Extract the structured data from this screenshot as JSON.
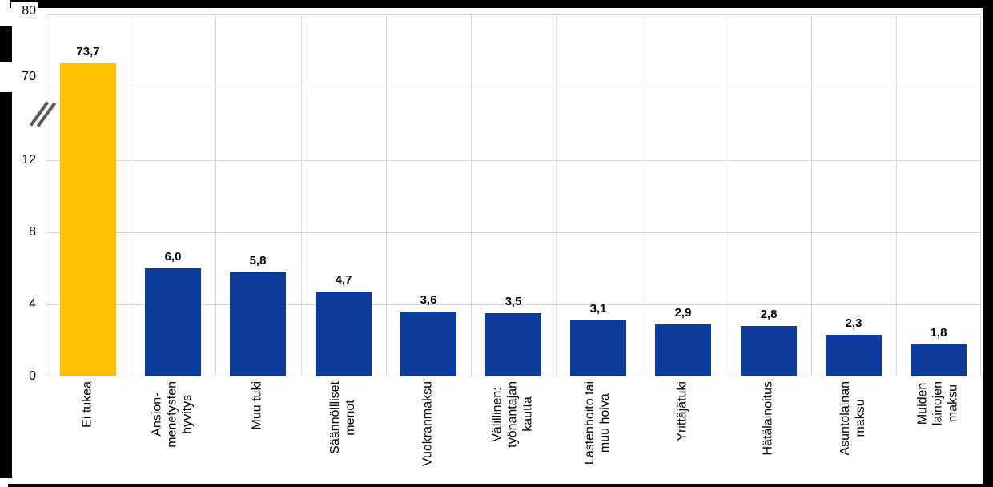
{
  "chart_data": {
    "type": "bar",
    "title": "",
    "xlabel": "",
    "ylabel": "",
    "grid": true,
    "legend": null,
    "categories": [
      {
        "lines": [
          "Ei tukea"
        ]
      },
      {
        "lines": [
          "Ansion-",
          "menetysten",
          "hyvitys"
        ]
      },
      {
        "lines": [
          "Muu tuki"
        ]
      },
      {
        "lines": [
          "Säännöllliset",
          "menot"
        ]
      },
      {
        "lines": [
          "Vuokranmaksu"
        ]
      },
      {
        "lines": [
          "Välillinen:",
          "työnantajan",
          "kautta"
        ]
      },
      {
        "lines": [
          "Lastenhoito tai",
          "muu hoiva"
        ]
      },
      {
        "lines": [
          "Yrittäjätuki"
        ]
      },
      {
        "lines": [
          "Hätälainoitus"
        ]
      },
      {
        "lines": [
          "Asuntolainan",
          "maksu"
        ]
      },
      {
        "lines": [
          "Muiden",
          "lainojen",
          "maksu"
        ]
      }
    ],
    "values": [
      73.7,
      6.0,
      5.8,
      4.7,
      3.6,
      3.5,
      3.1,
      2.9,
      2.8,
      2.3,
      1.8
    ],
    "value_labels": [
      "73,7",
      "6,0",
      "5,8",
      "4,7",
      "3,6",
      "3,5",
      "3,1",
      "2,9",
      "2,8",
      "2,3",
      "1,8"
    ],
    "highlight_index": 0,
    "colors": {
      "highlight": "#FFC000",
      "default": "#0C3B9C",
      "gridline": "#D9D9D9",
      "axis_break_mark": "#595959",
      "frame": "#000000"
    },
    "y_axis": {
      "has_break": true,
      "break_between": [
        12,
        70
      ],
      "lower_ticks": [
        {
          "v": 0,
          "label": "0"
        },
        {
          "v": 4,
          "label": "4"
        },
        {
          "v": 8,
          "label": "8"
        },
        {
          "v": 12,
          "label": "12"
        }
      ],
      "upper_ticks": [
        {
          "label": "70"
        },
        {
          "label": "80"
        }
      ]
    }
  }
}
